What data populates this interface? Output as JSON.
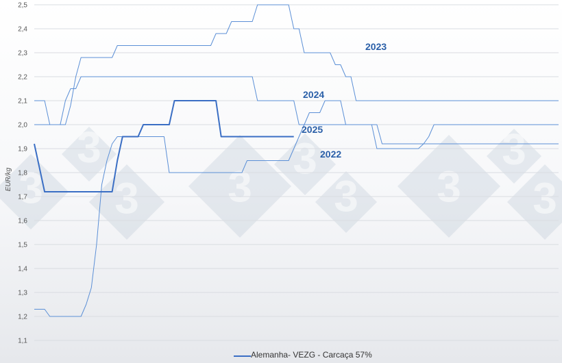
{
  "chart_data": {
    "type": "line",
    "title": "",
    "ylabel": "EUR/kg",
    "xlabel": "",
    "ylim": [
      1.1,
      2.5
    ],
    "yticks": [
      "1,1",
      "1,2",
      "1,3",
      "1,4",
      "1,5",
      "1,6",
      "1,7",
      "1,8",
      "1,9",
      "2,0",
      "2,1",
      "2,2",
      "2,3",
      "2,4",
      "2,5"
    ],
    "grid": true,
    "legend": {
      "position": "bottom",
      "label": "Alemanha- VEZG - Carcaça 57%"
    },
    "series": [
      {
        "name": "2022",
        "color": "#5b8fd6",
        "width": 1,
        "values": [
          1.23,
          1.23,
          1.23,
          1.2,
          1.2,
          1.2,
          1.2,
          1.2,
          1.2,
          1.2,
          1.25,
          1.32,
          1.5,
          1.75,
          1.85,
          1.92,
          1.95,
          1.95,
          1.95,
          1.95,
          1.95,
          1.95,
          1.95,
          1.95,
          1.95,
          1.95,
          1.8,
          1.8,
          1.8,
          1.8,
          1.8,
          1.8,
          1.8,
          1.8,
          1.8,
          1.8,
          1.8,
          1.8,
          1.8,
          1.8,
          1.8,
          1.85,
          1.85,
          1.85,
          1.85,
          1.85,
          1.85,
          1.85,
          1.85,
          1.85,
          1.9,
          1.95,
          2.0,
          2.05,
          2.05,
          2.05,
          2.1,
          2.1,
          2.1,
          2.1,
          2.0,
          2.0,
          2.0,
          2.0,
          2.0,
          2.0,
          1.9,
          1.9,
          1.9,
          1.9,
          1.9,
          1.9,
          1.9,
          1.9,
          1.9,
          1.92,
          1.95,
          2.0,
          2.0,
          2.0,
          2.0,
          2.0,
          2.0,
          2.0,
          2.0,
          2.0,
          2.0,
          2.0,
          2.0,
          2.0,
          2.0,
          2.0,
          2.0,
          2.0,
          2.0,
          2.0,
          2.0,
          2.0,
          2.0,
          2.0,
          2.0,
          2.0
        ]
      },
      {
        "name": "2023",
        "color": "#5b8fd6",
        "width": 1,
        "values": [
          2.1,
          2.1,
          2.1,
          2.0,
          2.0,
          2.0,
          2.0,
          2.08,
          2.2,
          2.28,
          2.28,
          2.28,
          2.28,
          2.28,
          2.28,
          2.28,
          2.33,
          2.33,
          2.33,
          2.33,
          2.33,
          2.33,
          2.33,
          2.33,
          2.33,
          2.33,
          2.33,
          2.33,
          2.33,
          2.33,
          2.33,
          2.33,
          2.33,
          2.33,
          2.33,
          2.38,
          2.38,
          2.38,
          2.43,
          2.43,
          2.43,
          2.43,
          2.43,
          2.5,
          2.5,
          2.5,
          2.5,
          2.5,
          2.5,
          2.5,
          2.4,
          2.4,
          2.3,
          2.3,
          2.3,
          2.3,
          2.3,
          2.3,
          2.25,
          2.25,
          2.2,
          2.2,
          2.1,
          2.1,
          2.1,
          2.1,
          2.1,
          2.1,
          2.1,
          2.1,
          2.1,
          2.1,
          2.1,
          2.1,
          2.1,
          2.1,
          2.1,
          2.1,
          2.1,
          2.1,
          2.1,
          2.1,
          2.1,
          2.1,
          2.1,
          2.1,
          2.1,
          2.1,
          2.1,
          2.1,
          2.1,
          2.1,
          2.1,
          2.1,
          2.1,
          2.1,
          2.1,
          2.1,
          2.1,
          2.1,
          2.1,
          2.1
        ]
      },
      {
        "name": "2024",
        "color": "#5b8fd6",
        "width": 1,
        "values": [
          2.0,
          2.0,
          2.0,
          2.0,
          2.0,
          2.0,
          2.1,
          2.15,
          2.15,
          2.2,
          2.2,
          2.2,
          2.2,
          2.2,
          2.2,
          2.2,
          2.2,
          2.2,
          2.2,
          2.2,
          2.2,
          2.2,
          2.2,
          2.2,
          2.2,
          2.2,
          2.2,
          2.2,
          2.2,
          2.2,
          2.2,
          2.2,
          2.2,
          2.2,
          2.2,
          2.2,
          2.2,
          2.2,
          2.2,
          2.2,
          2.2,
          2.2,
          2.2,
          2.1,
          2.1,
          2.1,
          2.1,
          2.1,
          2.1,
          2.1,
          2.1,
          2.0,
          2.0,
          2.0,
          2.0,
          2.0,
          2.0,
          2.0,
          2.0,
          2.0,
          2.0,
          2.0,
          2.0,
          2.0,
          2.0,
          2.0,
          2.0,
          1.92,
          1.92,
          1.92,
          1.92,
          1.92,
          1.92,
          1.92,
          1.92,
          1.92,
          1.92,
          1.92,
          1.92,
          1.92,
          1.92,
          1.92,
          1.92,
          1.92,
          1.92,
          1.92,
          1.92,
          1.92,
          1.92,
          1.92,
          1.92,
          1.92,
          1.92,
          1.92,
          1.92,
          1.92,
          1.92,
          1.92,
          1.92,
          1.92,
          1.92,
          1.92
        ]
      },
      {
        "name": "2025",
        "color": "#3a6ec4",
        "width": 2,
        "values": [
          1.92,
          1.82,
          1.72,
          1.72,
          1.72,
          1.72,
          1.72,
          1.72,
          1.72,
          1.72,
          1.72,
          1.72,
          1.72,
          1.72,
          1.72,
          1.72,
          1.85,
          1.95,
          1.95,
          1.95,
          1.95,
          2.0,
          2.0,
          2.0,
          2.0,
          2.0,
          2.0,
          2.1,
          2.1,
          2.1,
          2.1,
          2.1,
          2.1,
          2.1,
          2.1,
          2.1,
          1.95,
          1.95,
          1.95,
          1.95,
          1.95,
          1.95,
          1.95,
          1.95,
          1.95,
          1.95,
          1.95,
          1.95,
          1.95,
          1.95,
          1.95
        ]
      }
    ],
    "series_labels": [
      "2022",
      "2023",
      "2024",
      "2025"
    ]
  },
  "watermark": {
    "text": "3"
  }
}
